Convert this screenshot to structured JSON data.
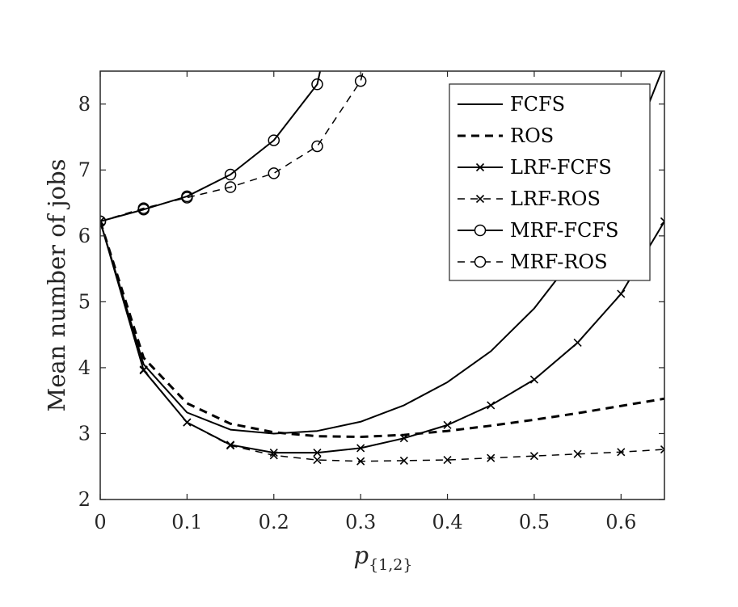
{
  "chart_data": {
    "type": "line",
    "title": "",
    "xlabel": "p",
    "xlabel_subscript": "{1,2}",
    "ylabel": "Mean number of jobs",
    "xlim": [
      0,
      0.65
    ],
    "ylim": [
      2,
      8.5
    ],
    "xticks": [
      0,
      0.1,
      0.2,
      0.3,
      0.4,
      0.5,
      0.6
    ],
    "xtick_labels": [
      "0",
      "0.1",
      "0.2",
      "0.3",
      "0.4",
      "0.5",
      "0.6"
    ],
    "yticks": [
      2,
      3,
      4,
      5,
      6,
      7,
      8
    ],
    "ytick_labels": [
      "2",
      "3",
      "4",
      "5",
      "6",
      "7",
      "8"
    ],
    "grid": false,
    "legend_position": "top-right",
    "series": [
      {
        "name": "FCFS",
        "line": "solid",
        "marker": "none",
        "width": 2,
        "x": [
          0,
          0.05,
          0.1,
          0.15,
          0.2,
          0.25,
          0.3,
          0.35,
          0.4,
          0.45,
          0.5,
          0.55,
          0.6,
          0.65
        ],
        "y": [
          6.22,
          4.05,
          3.32,
          3.06,
          3.0,
          3.04,
          3.18,
          3.43,
          3.78,
          4.25,
          4.9,
          5.75,
          6.95,
          8.6
        ]
      },
      {
        "name": "ROS",
        "line": "dashed",
        "marker": "none",
        "width": 3,
        "x": [
          0,
          0.05,
          0.1,
          0.15,
          0.2,
          0.25,
          0.3,
          0.35,
          0.4,
          0.45,
          0.5,
          0.55,
          0.6,
          0.65
        ],
        "y": [
          6.22,
          4.15,
          3.46,
          3.15,
          3.02,
          2.96,
          2.95,
          2.98,
          3.04,
          3.12,
          3.21,
          3.31,
          3.42,
          3.53
        ]
      },
      {
        "name": "LRF-FCFS",
        "line": "solid",
        "marker": "x",
        "width": 2,
        "x": [
          0,
          0.05,
          0.1,
          0.15,
          0.2,
          0.25,
          0.3,
          0.35,
          0.4,
          0.45,
          0.5,
          0.55,
          0.6,
          0.65
        ],
        "y": [
          6.22,
          3.96,
          3.17,
          2.83,
          2.71,
          2.71,
          2.78,
          2.93,
          3.13,
          3.43,
          3.82,
          4.38,
          5.12,
          6.22
        ]
      },
      {
        "name": "LRF-ROS",
        "line": "dashed",
        "marker": "x",
        "width": 1.5,
        "x": [
          0,
          0.05,
          0.1,
          0.15,
          0.2,
          0.25,
          0.3,
          0.35,
          0.4,
          0.45,
          0.5,
          0.55,
          0.6,
          0.65
        ],
        "y": [
          6.22,
          3.97,
          3.17,
          2.82,
          2.67,
          2.6,
          2.58,
          2.59,
          2.6,
          2.63,
          2.66,
          2.69,
          2.72,
          2.76
        ]
      },
      {
        "name": "MRF-FCFS",
        "line": "solid",
        "marker": "o",
        "width": 2,
        "x": [
          0,
          0.05,
          0.1,
          0.15,
          0.2,
          0.25,
          0.255
        ],
        "y": [
          6.22,
          6.4,
          6.6,
          6.93,
          7.45,
          8.3,
          8.6
        ]
      },
      {
        "name": "MRF-ROS",
        "line": "dashed",
        "marker": "o",
        "width": 1.5,
        "x": [
          0,
          0.05,
          0.1,
          0.15,
          0.2,
          0.25,
          0.3,
          0.305
        ],
        "y": [
          6.22,
          6.42,
          6.58,
          6.74,
          6.95,
          7.36,
          8.35,
          8.6
        ]
      }
    ]
  }
}
